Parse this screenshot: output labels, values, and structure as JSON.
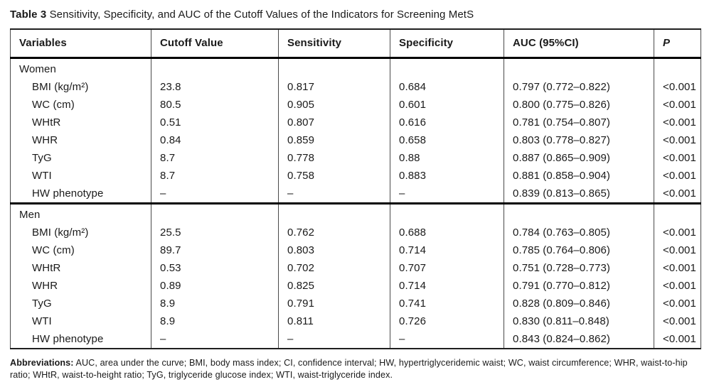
{
  "title": {
    "label": "Table 3",
    "text": "Sensitivity, Specificity, and AUC of the Cutoff Values of the Indicators for Screening MetS"
  },
  "table": {
    "columns": [
      "Variables",
      "Cutoff Value",
      "Sensitivity",
      "Specificity",
      "AUC (95%CI)",
      "P"
    ],
    "sections": [
      {
        "group": "Women",
        "rows": [
          {
            "variable": "BMI (kg/m²)",
            "cutoff": "23.8",
            "sensitivity": "0.817",
            "specificity": "0.684",
            "auc": "0.797 (0.772–0.822)",
            "p": "<0.001"
          },
          {
            "variable": "WC (cm)",
            "cutoff": "80.5",
            "sensitivity": "0.905",
            "specificity": "0.601",
            "auc": "0.800 (0.775–0.826)",
            "p": "<0.001"
          },
          {
            "variable": "WHtR",
            "cutoff": "0.51",
            "sensitivity": "0.807",
            "specificity": "0.616",
            "auc": "0.781 (0.754–0.807)",
            "p": "<0.001"
          },
          {
            "variable": "WHR",
            "cutoff": "0.84",
            "sensitivity": "0.859",
            "specificity": "0.658",
            "auc": "0.803 (0.778–0.827)",
            "p": "<0.001"
          },
          {
            "variable": "TyG",
            "cutoff": "8.7",
            "sensitivity": "0.778",
            "specificity": "0.88",
            "auc": "0.887 (0.865–0.909)",
            "p": "<0.001"
          },
          {
            "variable": "WTI",
            "cutoff": "8.7",
            "sensitivity": "0.758",
            "specificity": "0.883",
            "auc": "0.881 (0.858–0.904)",
            "p": "<0.001"
          },
          {
            "variable": "HW phenotype",
            "cutoff": "–",
            "sensitivity": "–",
            "specificity": "–",
            "auc": "0.839 (0.813–0.865)",
            "p": "<0.001"
          }
        ]
      },
      {
        "group": "Men",
        "rows": [
          {
            "variable": "BMI (kg/m²)",
            "cutoff": "25.5",
            "sensitivity": "0.762",
            "specificity": "0.688",
            "auc": "0.784 (0.763–0.805)",
            "p": "<0.001"
          },
          {
            "variable": "WC (cm)",
            "cutoff": "89.7",
            "sensitivity": "0.803",
            "specificity": "0.714",
            "auc": "0.785 (0.764–0.806)",
            "p": "<0.001"
          },
          {
            "variable": "WHtR",
            "cutoff": "0.53",
            "sensitivity": "0.702",
            "specificity": "0.707",
            "auc": "0.751 (0.728–0.773)",
            "p": "<0.001"
          },
          {
            "variable": "WHR",
            "cutoff": "0.89",
            "sensitivity": "0.825",
            "specificity": "0.714",
            "auc": "0.791 (0.770–0.812)",
            "p": "<0.001"
          },
          {
            "variable": "TyG",
            "cutoff": "8.9",
            "sensitivity": "0.791",
            "specificity": "0.741",
            "auc": "0.828 (0.809–0.846)",
            "p": "<0.001"
          },
          {
            "variable": "WTI",
            "cutoff": "8.9",
            "sensitivity": "0.811",
            "specificity": "0.726",
            "auc": "0.830 (0.811–0.848)",
            "p": "<0.001"
          },
          {
            "variable": "HW phenotype",
            "cutoff": "–",
            "sensitivity": "–",
            "specificity": "–",
            "auc": "0.843 (0.824–0.862)",
            "p": "<0.001"
          }
        ]
      }
    ]
  },
  "footer": {
    "label": "Abbreviations:",
    "text": " AUC, area under the curve; BMI, body mass index; CI, confidence interval; HW, hypertriglyceridemic waist; WC, waist circumference; WHR, waist-to-hip ratio; WHtR, waist-to-height ratio; TyG, triglyceride glucose index; WTI, waist-triglyceride index."
  }
}
